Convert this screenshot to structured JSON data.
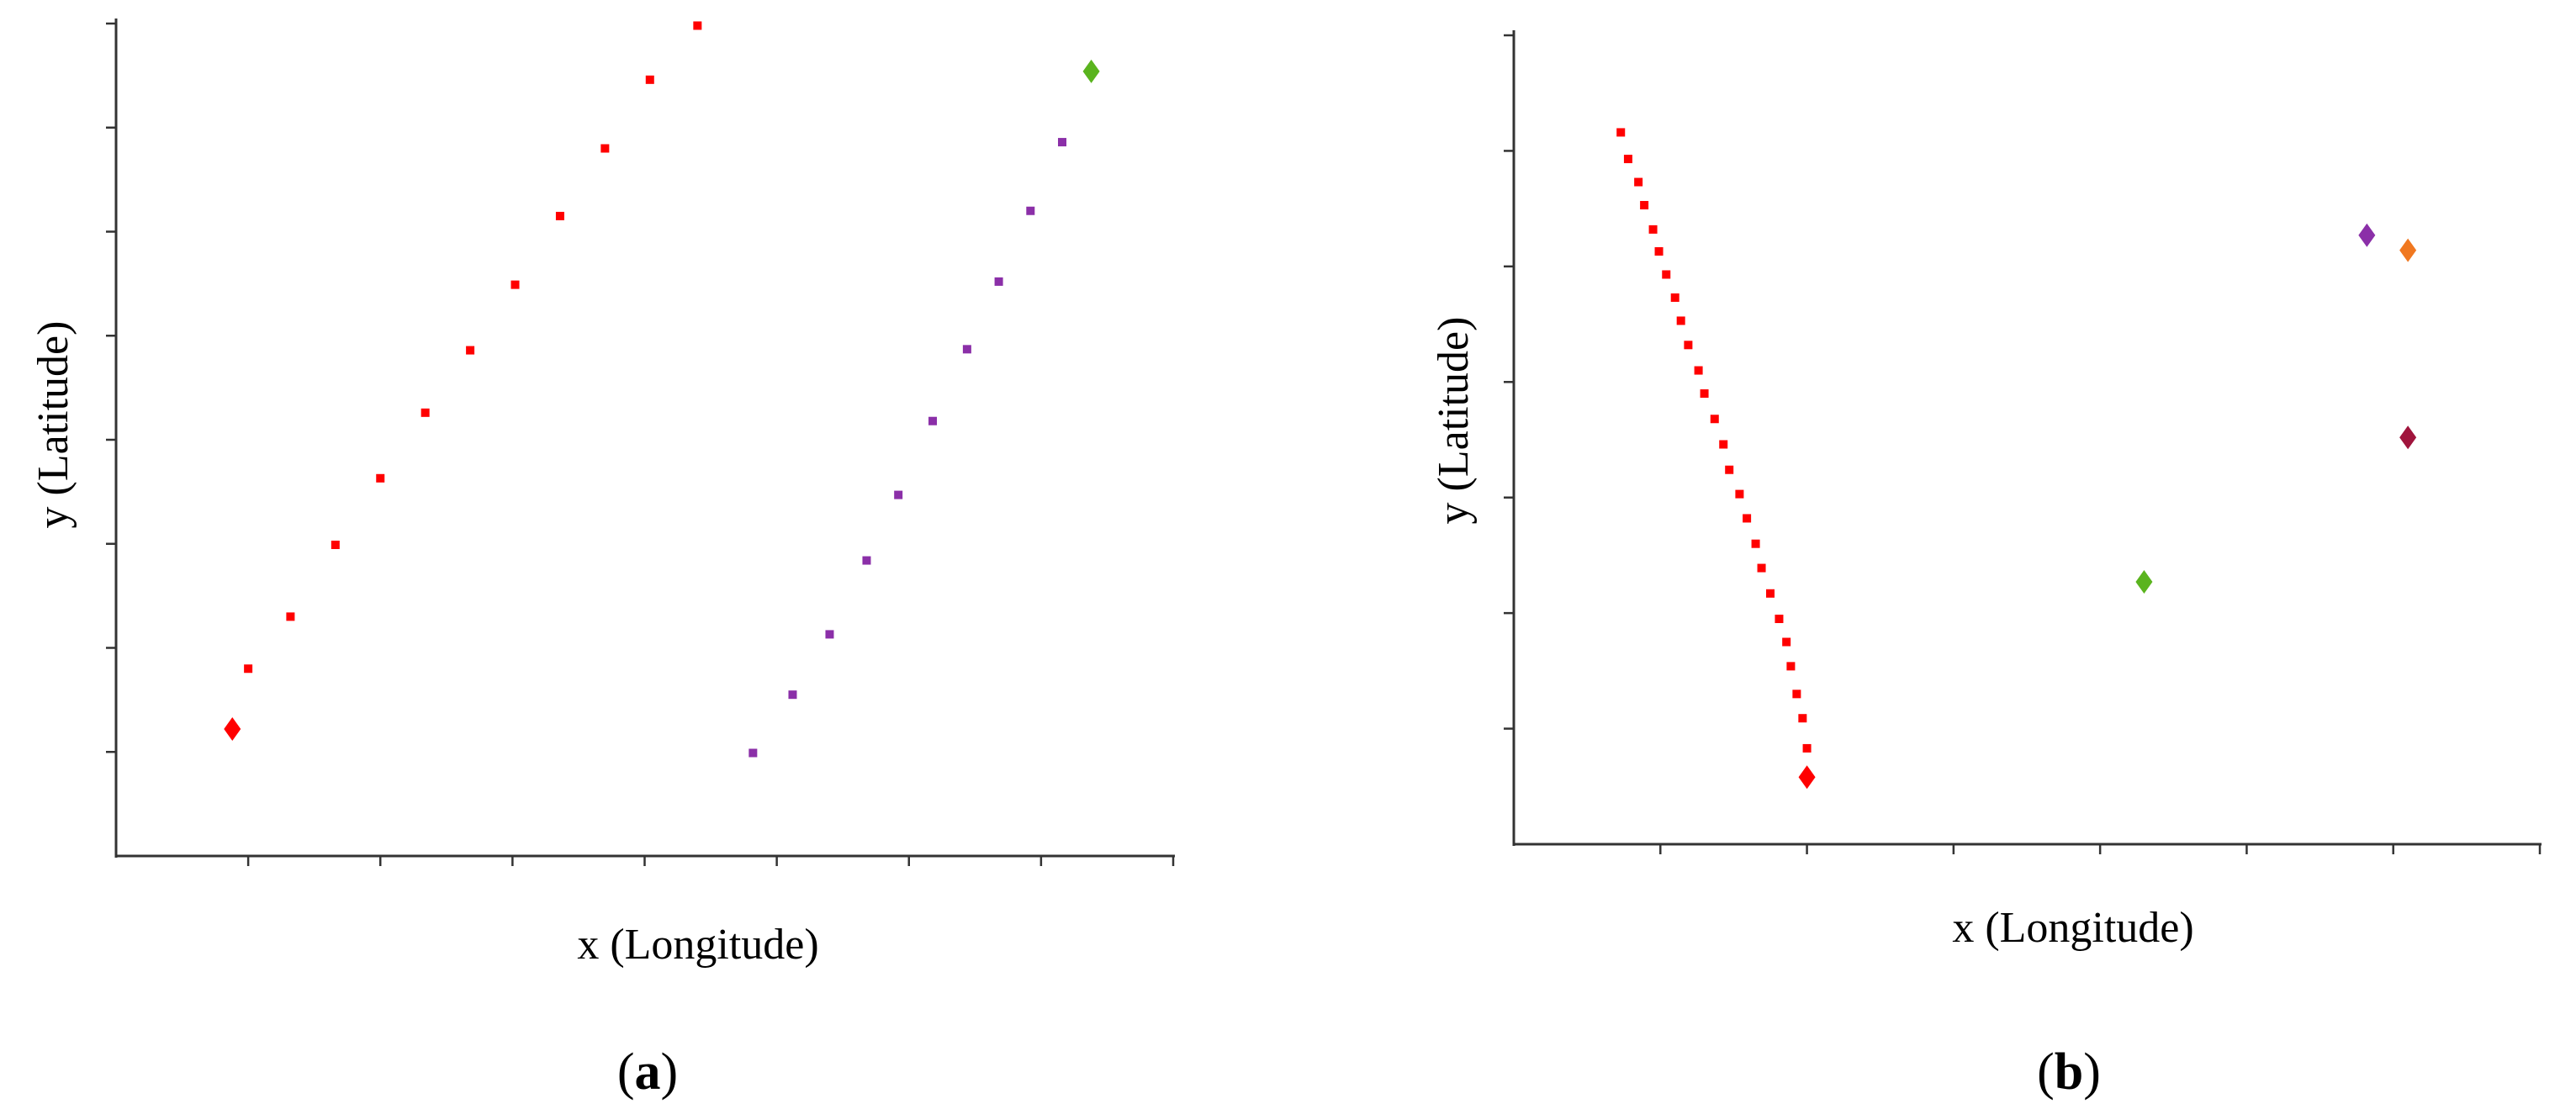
{
  "figure": {
    "background": "#ffffff",
    "axis_color": "#333333",
    "panels": [
      {
        "label_open": "(",
        "label_letter": "a",
        "label_close": ")"
      },
      {
        "label_open": "(",
        "label_letter": "b",
        "label_close": ")"
      }
    ]
  },
  "chart_data": [
    {
      "type": "scatter",
      "panel": "a",
      "xlabel": "x (Longitude)",
      "ylabel": "y (Latitude)",
      "title": "",
      "xlim": [
        0,
        8
      ],
      "ylim": [
        0,
        8
      ],
      "x_ticks": [
        1,
        2,
        3,
        4,
        5,
        6,
        7,
        8
      ],
      "y_ticks": [
        1,
        2,
        3,
        4,
        5,
        6,
        7,
        8
      ],
      "tick_labels_shown": false,
      "grid": false,
      "series": [
        {
          "color": "#ff0000",
          "marker": "dot",
          "points": [
            [
              1.0,
              1.8
            ],
            [
              1.32,
              2.3
            ],
            [
              1.66,
              2.99
            ],
            [
              2.0,
              3.63
            ],
            [
              2.34,
              4.26
            ],
            [
              2.68,
              4.86
            ],
            [
              3.02,
              5.49
            ],
            [
              3.36,
              6.15
            ],
            [
              3.7,
              6.8
            ],
            [
              4.04,
              7.46
            ],
            [
              4.4,
              7.98
            ]
          ]
        },
        {
          "color": "#8b2fa8",
          "marker": "dot",
          "points": [
            [
              4.82,
              0.99
            ],
            [
              5.12,
              1.55
            ],
            [
              5.4,
              2.13
            ],
            [
              5.68,
              2.84
            ],
            [
              5.92,
              3.47
            ],
            [
              6.18,
              4.18
            ],
            [
              6.44,
              4.87
            ],
            [
              6.68,
              5.52
            ],
            [
              6.92,
              6.2
            ],
            [
              7.16,
              6.86
            ]
          ]
        },
        {
          "color": "#ff0000",
          "marker": "diamond",
          "points": [
            [
              0.88,
              1.22
            ]
          ]
        },
        {
          "color": "#5ab41e",
          "marker": "diamond",
          "points": [
            [
              7.38,
              7.54
            ]
          ]
        }
      ]
    },
    {
      "type": "scatter",
      "panel": "b",
      "xlabel": "x (Longitude)",
      "ylabel": "y (Latitude)",
      "title": "",
      "xlim": [
        0,
        7
      ],
      "ylim": [
        0,
        7
      ],
      "x_ticks": [
        1,
        2,
        3,
        4,
        5,
        6,
        7
      ],
      "y_ticks": [
        1,
        2,
        3,
        4,
        5,
        6,
        7
      ],
      "tick_labels_shown": false,
      "grid": false,
      "series": [
        {
          "color": "#ff0000",
          "marker": "dot",
          "points": [
            [
              0.73,
              6.16
            ],
            [
              0.78,
              5.93
            ],
            [
              0.85,
              5.73
            ],
            [
              0.89,
              5.53
            ],
            [
              0.95,
              5.32
            ],
            [
              0.99,
              5.13
            ],
            [
              1.04,
              4.93
            ],
            [
              1.1,
              4.73
            ],
            [
              1.14,
              4.53
            ],
            [
              1.19,
              4.32
            ],
            [
              1.26,
              4.1
            ],
            [
              1.3,
              3.9
            ],
            [
              1.37,
              3.68
            ],
            [
              1.43,
              3.46
            ],
            [
              1.47,
              3.24
            ],
            [
              1.54,
              3.03
            ],
            [
              1.59,
              2.82
            ],
            [
              1.65,
              2.6
            ],
            [
              1.69,
              2.39
            ],
            [
              1.75,
              2.17
            ],
            [
              1.81,
              1.95
            ],
            [
              1.86,
              1.75
            ],
            [
              1.89,
              1.54
            ],
            [
              1.93,
              1.3
            ],
            [
              1.97,
              1.09
            ],
            [
              2.0,
              0.83
            ]
          ]
        },
        {
          "color": "#ff0000",
          "marker": "diamond",
          "points": [
            [
              2.0,
              0.58
            ]
          ]
        },
        {
          "color": "#5ab41e",
          "marker": "diamond",
          "points": [
            [
              4.3,
              2.27
            ]
          ]
        },
        {
          "color": "#8b2fa8",
          "marker": "diamond",
          "points": [
            [
              5.82,
              5.27
            ]
          ]
        },
        {
          "color": "#f07820",
          "marker": "diamond",
          "points": [
            [
              6.1,
              5.14
            ]
          ]
        },
        {
          "color": "#a0143c",
          "marker": "diamond",
          "points": [
            [
              6.1,
              3.52
            ]
          ]
        }
      ]
    }
  ]
}
